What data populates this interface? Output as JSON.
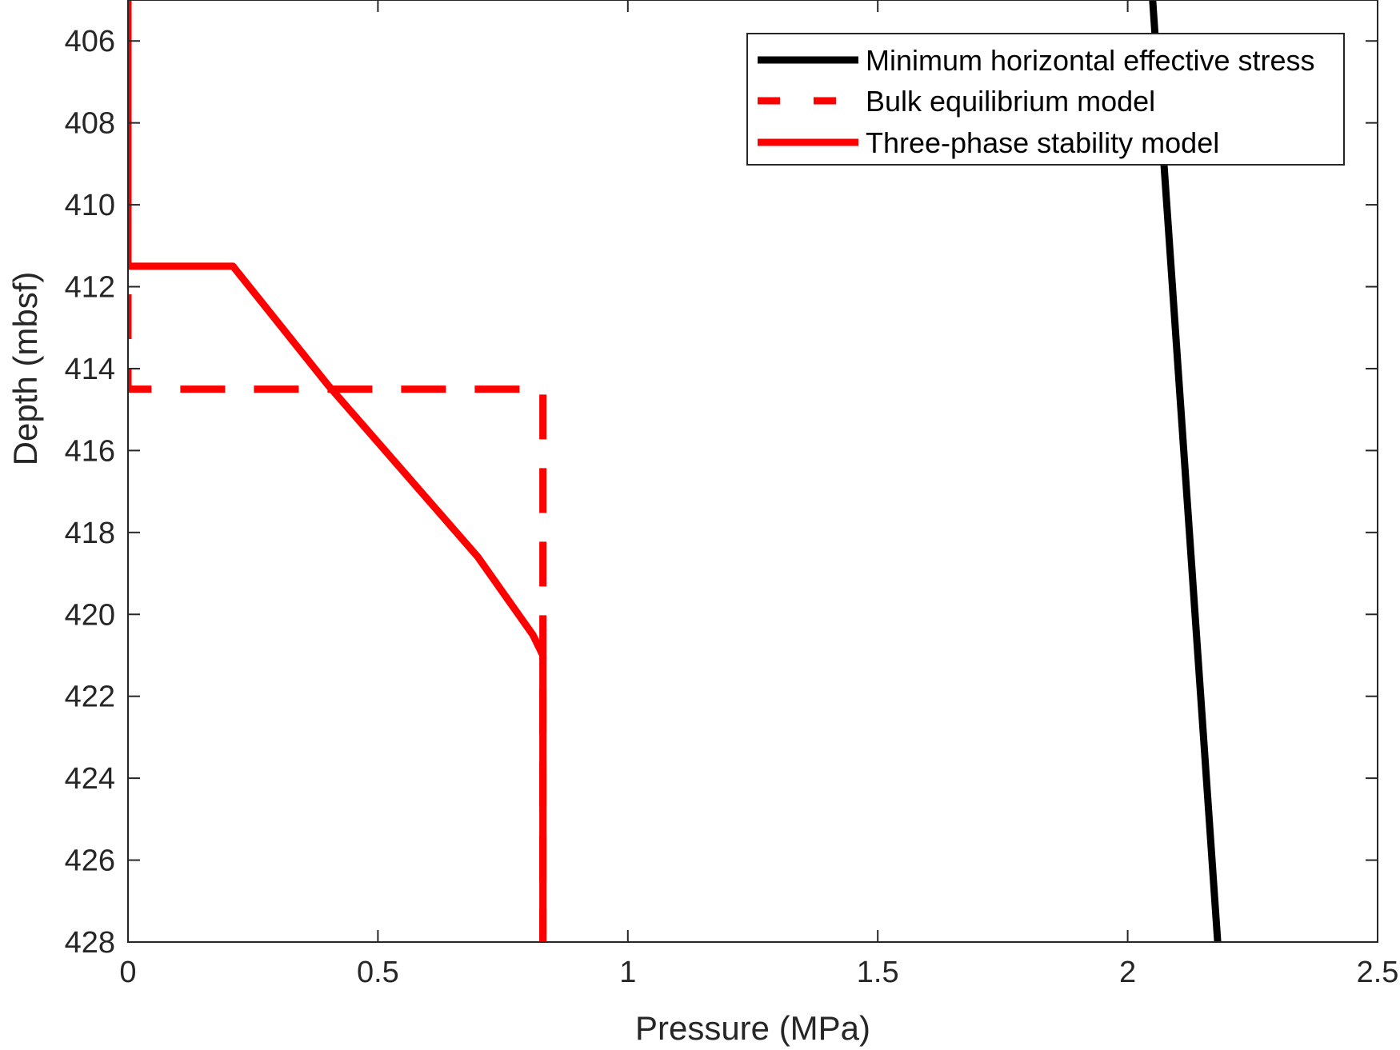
{
  "chart_data": {
    "type": "line",
    "xlabel": "Pressure (MPa)",
    "ylabel": "Depth (mbsf)",
    "xlim": [
      0,
      2.5
    ],
    "ylim": [
      405,
      428
    ],
    "y_reversed": true,
    "x_ticks": [
      0,
      0.5,
      1,
      1.5,
      2,
      2.5
    ],
    "x_tick_labels": [
      "0",
      "0.5",
      "1",
      "1.5",
      "2",
      "2.5"
    ],
    "y_ticks": [
      406,
      408,
      410,
      412,
      414,
      416,
      418,
      420,
      422,
      424,
      426,
      428
    ],
    "y_tick_labels": [
      "406",
      "408",
      "410",
      "412",
      "414",
      "416",
      "418",
      "420",
      "422",
      "424",
      "426",
      "428"
    ],
    "grid": false,
    "legend_position": "top-right",
    "series": [
      {
        "name": "Minimum horizontal effective stress",
        "color": "#000000",
        "style": "solid",
        "points": [
          [
            2.05,
            405
          ],
          [
            2.18,
            428
          ]
        ]
      },
      {
        "name": "Bulk equilibrium model",
        "color": "#ff0000",
        "style": "dashed",
        "points": [
          [
            0,
            405
          ],
          [
            0,
            414.5
          ],
          [
            0.83,
            414.5
          ],
          [
            0.83,
            428
          ]
        ]
      },
      {
        "name": "Three-phase stability model",
        "color": "#ff0000",
        "style": "solid",
        "points": [
          [
            0,
            405
          ],
          [
            0,
            411.5
          ],
          [
            0.21,
            411.5
          ],
          [
            0.4,
            414.4
          ],
          [
            0.7,
            418.6
          ],
          [
            0.81,
            420.5
          ],
          [
            0.83,
            421
          ],
          [
            0.83,
            428
          ]
        ]
      }
    ]
  }
}
